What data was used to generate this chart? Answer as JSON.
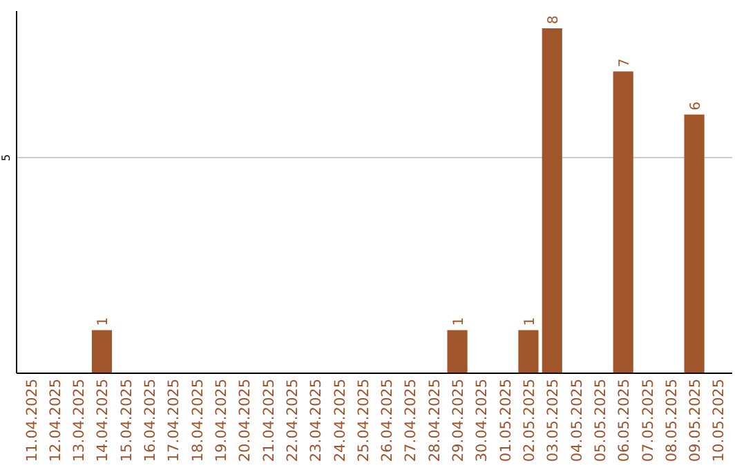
{
  "chart_data": {
    "type": "bar",
    "categories": [
      "11.04.2025",
      "12.04.2025",
      "13.04.2025",
      "14.04.2025",
      "15.04.2025",
      "16.04.2025",
      "17.04.2025",
      "18.04.2025",
      "19.04.2025",
      "20.04.2025",
      "21.04.2025",
      "22.04.2025",
      "23.04.2025",
      "24.04.2025",
      "25.04.2025",
      "26.04.2025",
      "27.04.2025",
      "28.04.2025",
      "29.04.2025",
      "30.04.2025",
      "01.05.2025",
      "02.05.2025",
      "03.05.2025",
      "04.05.2025",
      "05.05.2025",
      "06.05.2025",
      "07.05.2025",
      "08.05.2025",
      "09.05.2025",
      "10.05.2025"
    ],
    "values": [
      0,
      0,
      0,
      1,
      0,
      0,
      0,
      0,
      0,
      0,
      0,
      0,
      0,
      0,
      0,
      0,
      0,
      0,
      1,
      0,
      0,
      1,
      8,
      0,
      0,
      7,
      0,
      0,
      6,
      0
    ],
    "value_labels": [
      null,
      null,
      null,
      "1",
      null,
      null,
      null,
      null,
      null,
      null,
      null,
      null,
      null,
      null,
      null,
      null,
      null,
      null,
      "1",
      null,
      null,
      "1",
      "8",
      null,
      null,
      "7",
      null,
      null,
      "6",
      null
    ],
    "color": "#a0562a",
    "ylim": [
      0,
      8.4
    ],
    "yticks": [
      5
    ],
    "grid": "y"
  }
}
